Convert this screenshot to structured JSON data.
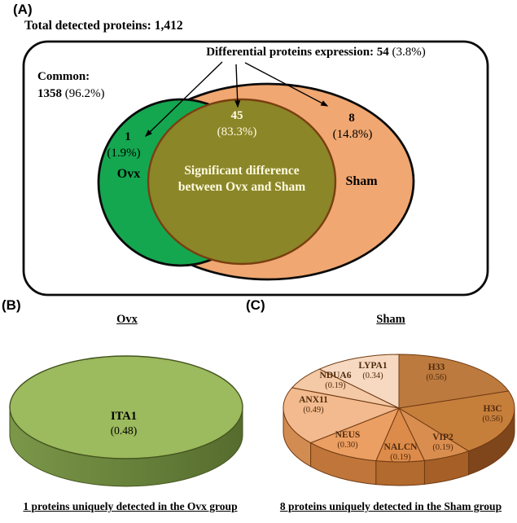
{
  "chart_data": [
    {
      "type": "venn",
      "title": "Total detected proteins: 1,412",
      "total_detected": 1412,
      "common": {
        "count": 1358,
        "pct": "96.2%"
      },
      "differential": {
        "count": 54,
        "pct": "3.8%"
      },
      "sets": [
        {
          "name": "Ovx",
          "unique_count": 1,
          "unique_pct": "1.9%"
        },
        {
          "name": "Sham",
          "unique_count": 8,
          "unique_pct": "14.8%"
        }
      ],
      "overlap": {
        "count": 45,
        "pct": "83.3%",
        "label": "Significant difference between Ovx and Sham"
      }
    },
    {
      "type": "pie",
      "title": "Ovx",
      "caption": "1 proteins uniquely detected in the Ovx group",
      "slices": [
        {
          "label": "ITA1",
          "value": 0.48,
          "color": "#9cba5e",
          "side": "#6b8440"
        }
      ]
    },
    {
      "type": "pie",
      "title": "Sham",
      "caption": "8 proteins uniquely detected in the Sham group",
      "slices": [
        {
          "label": "H33",
          "value": 0.56,
          "color": "#bd7a3e",
          "side": "#8a5123"
        },
        {
          "label": "H3C",
          "value": 0.56,
          "color": "#c67e3b",
          "side": "#7f451b"
        },
        {
          "label": "VIP2",
          "value": 0.19,
          "color": "#d98e50",
          "side": "#a65f26"
        },
        {
          "label": "NALCN",
          "value": 0.19,
          "color": "#dd8b4a",
          "side": "#b26a2e"
        },
        {
          "label": "NEUS",
          "value": 0.3,
          "color": "#ec9f62",
          "side": "#c0763a"
        },
        {
          "label": "ANX11",
          "value": 0.49,
          "color": "#f2ba8e",
          "side": "#d28c52"
        },
        {
          "label": "NDUA6",
          "value": 0.19,
          "color": "#f4c9a5",
          "side": "#caa07e"
        },
        {
          "label": "LYPA1",
          "value": 0.34,
          "color": "#f6d9c0",
          "side": "#cbb095"
        }
      ]
    }
  ],
  "panel_a": {
    "letter": "(A)",
    "title": "Total detected proteins: 1,412",
    "diff_bold": "Differential proteins expression: 54",
    "diff_pct": "(3.8%)",
    "common_title": "Common:",
    "common_count": "1358",
    "common_pct": "(96.2%)",
    "ovx_count": "1",
    "ovx_pct": "(1.9%)",
    "ovx_name": "Ovx",
    "overlap_count": "45",
    "overlap_pct": "(83.3%)",
    "overlap_line1": "Significant difference",
    "overlap_line2": "between Ovx and Sham",
    "sham_count": "8",
    "sham_pct": "(14.8%)",
    "sham_name": "Sham",
    "colors": {
      "ovx_fill": "#14a750",
      "sham_fill": "#f0a771",
      "overlap_fill": "#8b8628",
      "overlap_stroke": "#7a3f10",
      "outline": "#0b0b0b",
      "overlap_text": "#fffbe0"
    }
  },
  "panel_b": {
    "letter": "(B)",
    "title": "Ovx",
    "caption": "1 proteins uniquely detected in the Ovx group",
    "colors": {
      "top": "#9cba5e",
      "side_left": "#7b9749",
      "side_right": "#566c2e",
      "stroke": "#44541f"
    }
  },
  "panel_c": {
    "letter": "(C)",
    "title": "Sham",
    "caption": "8 proteins uniquely detected in the Sham group",
    "colors": {
      "stroke": "#6f3a12",
      "label_text": "#4f2a0d"
    }
  }
}
